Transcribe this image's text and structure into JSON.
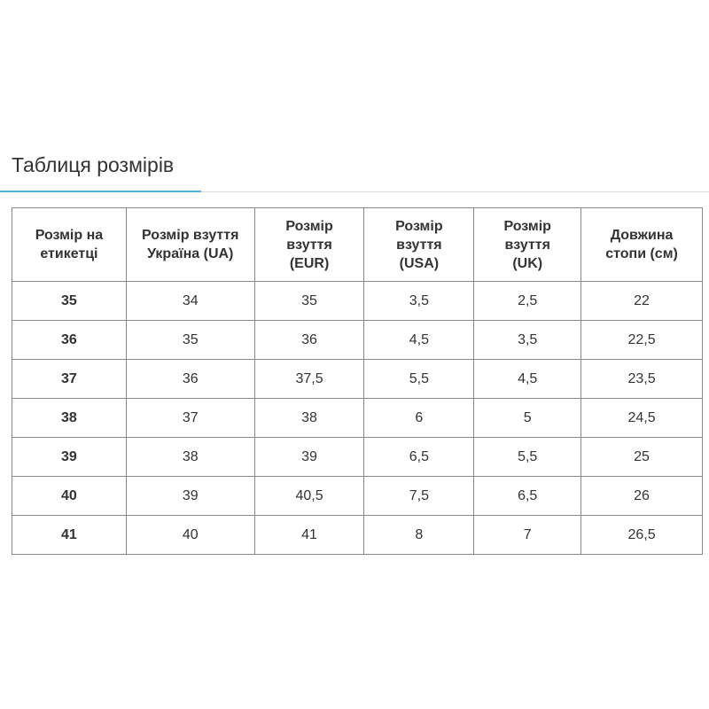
{
  "title": "Таблиця розмірів",
  "accent_color": "#5aaee6",
  "table": {
    "headers": [
      "Розмір на етикетці",
      "Розмір взуття Україна (UA)",
      "Розмір взуття (EUR)",
      "Розмір взуття (USA)",
      "Розмір взуття (UK)",
      "Довжина стопи (см)"
    ],
    "rows": [
      [
        "35",
        "34",
        "35",
        "3,5",
        "2,5",
        "22"
      ],
      [
        "36",
        "35",
        "36",
        "4,5",
        "3,5",
        "22,5"
      ],
      [
        "37",
        "36",
        "37,5",
        "5,5",
        "4,5",
        "23,5"
      ],
      [
        "38",
        "37",
        "38",
        "6",
        "5",
        "24,5"
      ],
      [
        "39",
        "38",
        "39",
        "6,5",
        "5,5",
        "25"
      ],
      [
        "40",
        "39",
        "40,5",
        "7,5",
        "6,5",
        "26"
      ],
      [
        "41",
        "40",
        "41",
        "8",
        "7",
        "26,5"
      ]
    ]
  }
}
